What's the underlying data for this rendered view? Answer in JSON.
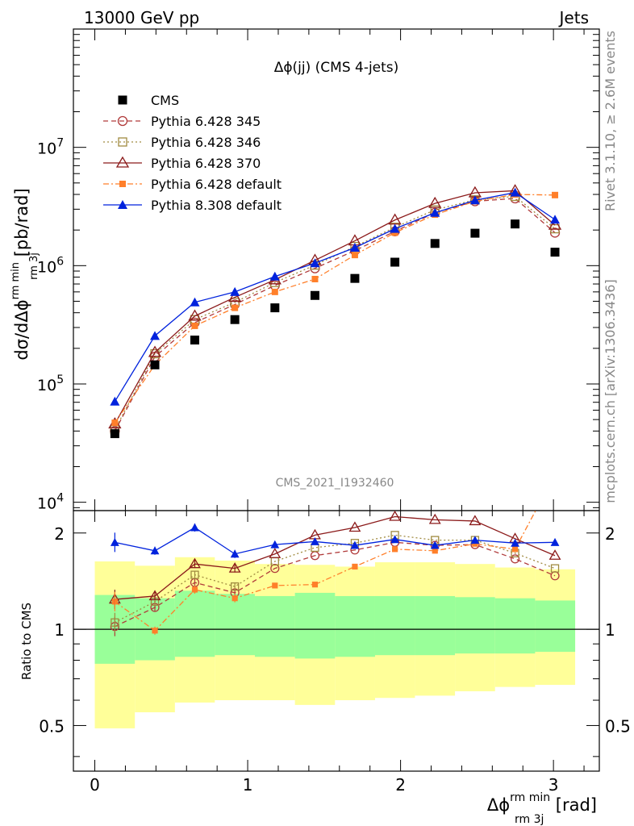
{
  "header": {
    "left": "13000 GeV pp",
    "right": "Jets"
  },
  "side": {
    "top": "Rivet 3.1.10, ≥ 2.6M events",
    "bottom": "mcplots.cern.ch [arXiv:1306.3436]"
  },
  "chart_data": {
    "type": "scatter",
    "title": "Δϕ(jj) (CMS 4-jets)",
    "watermark": "CMS_2021_I1932460",
    "x_label": {
      "main": "Δϕ",
      "sup": "rm min",
      "sub": "rm 3j",
      "unit": "[rad]"
    },
    "y_label": {
      "prefix": "dσ/dΔϕ",
      "sup": "rm min",
      "sub": "rm 3j",
      "unit": "[pb/rad]"
    },
    "ratio_label": "Ratio to CMS",
    "x_range": [
      -0.14,
      3.3
    ],
    "y_range": [
      8500,
      100000000.0
    ],
    "y_scale": "log",
    "ratio_range": [
      0.36,
      2.35
    ],
    "ratio_scale": "log",
    "x_ticks": [
      {
        "v": 0,
        "l": "0"
      },
      {
        "v": 1,
        "l": "1"
      },
      {
        "v": 2,
        "l": "2"
      },
      {
        "v": 3,
        "l": "3"
      }
    ],
    "y_ticks": [
      {
        "v": 10000,
        "b": "10",
        "e": "4"
      },
      {
        "v": 100000,
        "b": "10",
        "e": "5"
      },
      {
        "v": 1000000,
        "b": "10",
        "e": "6"
      },
      {
        "v": 10000000,
        "b": "10",
        "e": "7"
      }
    ],
    "ratio_ticks": [
      {
        "v": 0.5,
        "l": "0.5"
      },
      {
        "v": 1,
        "l": "1"
      },
      {
        "v": 2,
        "l": "2"
      }
    ],
    "x": [
      0.131,
      0.393,
      0.654,
      0.916,
      1.178,
      1.44,
      1.701,
      1.963,
      2.225,
      2.487,
      2.749,
      3.01
    ],
    "bin_edges": [
      0,
      0.262,
      0.524,
      0.785,
      1.047,
      1.309,
      1.571,
      1.833,
      2.094,
      2.356,
      2.618,
      2.88,
      3.142
    ],
    "band_yellow": [
      [
        0.49,
        1.63
      ],
      [
        0.55,
        1.58
      ],
      [
        0.59,
        1.68
      ],
      [
        0.6,
        1.64
      ],
      [
        0.6,
        1.6
      ],
      [
        0.58,
        1.59
      ],
      [
        0.6,
        1.57
      ],
      [
        0.61,
        1.62
      ],
      [
        0.62,
        1.62
      ],
      [
        0.64,
        1.6
      ],
      [
        0.66,
        1.56
      ],
      [
        0.67,
        1.54
      ]
    ],
    "band_green": [
      [
        0.78,
        1.28
      ],
      [
        0.8,
        1.25
      ],
      [
        0.82,
        1.32
      ],
      [
        0.83,
        1.29
      ],
      [
        0.82,
        1.27
      ],
      [
        0.81,
        1.3
      ],
      [
        0.82,
        1.27
      ],
      [
        0.83,
        1.27
      ],
      [
        0.83,
        1.27
      ],
      [
        0.84,
        1.26
      ],
      [
        0.84,
        1.25
      ],
      [
        0.85,
        1.23
      ]
    ],
    "series": [
      {
        "name": "CMS",
        "marker": "square-filled",
        "color": "#000000",
        "dash": "",
        "values": [
          38000,
          145000,
          235000,
          350000,
          440000,
          560000,
          780000,
          1070000,
          1540000,
          1880000,
          2250000,
          1300000
        ],
        "ratio": []
      },
      {
        "name": "Pythia 6.428 345",
        "marker": "circle-open",
        "color": "#b03a3a",
        "dash": "6,4",
        "values": [
          40000,
          170000,
          330000,
          470000,
          680000,
          950000,
          1340000,
          1950000,
          2800000,
          3500000,
          3700000,
          1900000
        ],
        "ratio": [
          1.02,
          1.17,
          1.4,
          1.3,
          1.55,
          1.7,
          1.77,
          1.87,
          1.83,
          1.84,
          1.66,
          1.47
        ]
      },
      {
        "name": "Pythia 6.428 346",
        "marker": "square-open",
        "color": "#a08a40",
        "dash": "2,3",
        "values": [
          41000,
          180000,
          350000,
          490000,
          720000,
          1010000,
          1450000,
          2110000,
          2960000,
          3600000,
          3850000,
          2050000
        ],
        "ratio": [
          1.05,
          1.22,
          1.48,
          1.36,
          1.63,
          1.8,
          1.86,
          1.97,
          1.9,
          1.9,
          1.73,
          1.55
        ]
      },
      {
        "name": "Pythia 6.428 370",
        "marker": "triangle-open",
        "color": "#8b1a1a",
        "dash": "",
        "values": [
          46000,
          185000,
          375000,
          540000,
          760000,
          1110000,
          1620000,
          2430000,
          3360000,
          4130000,
          4300000,
          2200000
        ],
        "ratio": [
          1.24,
          1.27,
          1.6,
          1.55,
          1.72,
          1.97,
          2.08,
          2.25,
          2.2,
          2.18,
          1.92,
          1.7
        ]
      },
      {
        "name": "Pythia 6.428 default",
        "marker": "square-small-filled",
        "color": "#ff7f2a",
        "dash": "7,3,2,3",
        "values": [
          47000,
          145000,
          310000,
          440000,
          600000,
          770000,
          1230000,
          1900000,
          2700000,
          3500000,
          4000000,
          3950000
        ],
        "ratio": [
          1.22,
          0.99,
          1.33,
          1.25,
          1.37,
          1.38,
          1.57,
          1.78,
          1.76,
          1.85,
          1.78,
          3.05
        ]
      },
      {
        "name": "Pythia 8.308 default",
        "marker": "triangle-filled",
        "color": "#0022dd",
        "dash": "",
        "values": [
          71000,
          255000,
          490000,
          600000,
          810000,
          1050000,
          1420000,
          2050000,
          2800000,
          3570000,
          4150000,
          2450000
        ],
        "ratio": [
          1.87,
          1.76,
          2.08,
          1.72,
          1.84,
          1.88,
          1.83,
          1.91,
          1.83,
          1.9,
          1.86,
          1.87
        ]
      }
    ]
  }
}
